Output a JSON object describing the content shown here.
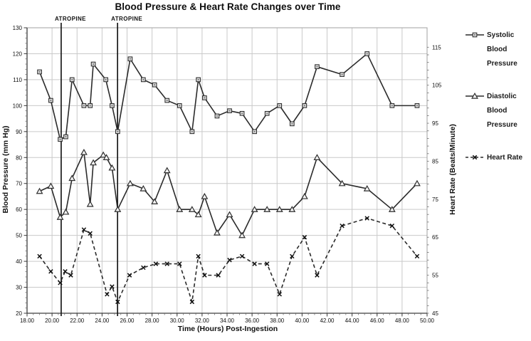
{
  "chart_data": {
    "type": "line",
    "title": "Blood Pressure & Heart Rate Changes over Time",
    "xlabel": "Time (Hours) Post-Ingestion",
    "ylabel_left": "Blood Pressure (mm Hg)",
    "ylabel_right": "Heart Rate (Beats/Minute)",
    "grid": true,
    "legend_position": "right",
    "x_axis": {
      "min": 18,
      "max": 50,
      "major_tick": 2,
      "minor_tick": 0.5,
      "tick_labels": [
        "18.00",
        "20.00",
        "22.00",
        "24.00",
        "26.00",
        "28.00",
        "30.00",
        "32.00",
        "34.00",
        "36.00",
        "38.00",
        "40.00",
        "42.00",
        "44.00",
        "46.00",
        "48.00",
        "50.00"
      ]
    },
    "y_left_axis": {
      "min": 20,
      "max": 130,
      "major_tick": 10,
      "minor_tick": 2,
      "tick_labels": [
        130,
        120,
        110,
        100,
        90,
        80,
        70,
        60,
        50,
        40,
        30,
        20
      ]
    },
    "y_right_axis": {
      "tick_labels": [
        115,
        105,
        95,
        85,
        75,
        65,
        55,
        45
      ],
      "minor_tick": 2,
      "bp_equiv_at_hr45": 20,
      "bp_units_per_hr_unit": 1.4643
    },
    "annotations": [
      {
        "type": "vline",
        "x": 20.73,
        "label": "ATROPINE"
      },
      {
        "type": "vline",
        "x": 25.24,
        "label": "ATROPINE"
      }
    ],
    "series": [
      {
        "name": "Systolic Blood Pressure",
        "legend_lines": [
          "Systolic",
          "Blood",
          "Pressure"
        ],
        "axis": "left",
        "line": "solid",
        "marker": "square",
        "x": [
          19.0,
          19.9,
          20.65,
          21.1,
          21.6,
          22.55,
          23.05,
          23.3,
          24.3,
          24.8,
          25.25,
          26.25,
          27.3,
          28.2,
          29.2,
          30.2,
          31.2,
          31.7,
          32.2,
          33.2,
          34.2,
          35.2,
          36.2,
          37.2,
          38.2,
          39.2,
          40.2,
          41.2,
          43.2,
          45.2,
          47.2,
          49.2
        ],
        "y": [
          113,
          102,
          87,
          88,
          110,
          100,
          100,
          116,
          110,
          100,
          90,
          118,
          110,
          108,
          102,
          100,
          90,
          110,
          103,
          96,
          98,
          97,
          90,
          97,
          100,
          93,
          100,
          115,
          112,
          120,
          100,
          100
        ]
      },
      {
        "name": "Diastolic Blood Pressure",
        "legend_lines": [
          "Diastolic",
          "Blood",
          "Pressure"
        ],
        "axis": "left",
        "line": "solid",
        "marker": "triangle",
        "x": [
          19.0,
          19.9,
          20.65,
          21.1,
          21.6,
          22.55,
          23.05,
          23.3,
          24.1,
          24.35,
          24.8,
          25.25,
          26.25,
          27.3,
          28.2,
          29.2,
          30.2,
          31.2,
          31.7,
          32.2,
          33.2,
          34.2,
          35.2,
          36.2,
          37.2,
          38.2,
          39.2,
          40.2,
          41.2,
          43.2,
          45.2,
          47.2,
          49.2
        ],
        "y": [
          67,
          69,
          57,
          59,
          72,
          82,
          62,
          78,
          81,
          80,
          76,
          60,
          70,
          68,
          63,
          75,
          60,
          60,
          58,
          65,
          51,
          58,
          50,
          60,
          60,
          60,
          60,
          65,
          80,
          70,
          68,
          60,
          70
        ]
      },
      {
        "name": "Heart Rate",
        "legend_lines": [
          "Heart Rate"
        ],
        "axis": "right",
        "line": "dashed",
        "marker": "x",
        "x": [
          19.0,
          19.9,
          20.65,
          21.05,
          21.5,
          22.55,
          23.05,
          24.4,
          24.8,
          25.25,
          26.2,
          27.3,
          28.3,
          29.2,
          30.2,
          31.2,
          31.7,
          32.2,
          33.3,
          34.2,
          35.2,
          36.2,
          37.2,
          38.2,
          39.2,
          40.2,
          41.2,
          43.2,
          45.2,
          47.2,
          49.2
        ],
        "y": [
          60,
          56,
          53,
          56,
          55,
          67,
          66,
          50,
          52,
          48,
          55,
          57,
          58,
          58,
          58,
          48,
          60,
          55,
          55,
          59,
          60,
          58,
          58,
          50,
          60,
          65,
          55,
          68,
          70,
          68,
          60
        ]
      }
    ],
    "colors": {
      "series": "#2b2b2b",
      "grid": "#c9c9c9",
      "border": "#a0a0a0",
      "axis": "#3d3d3d",
      "text": "#111111",
      "annotation_line": "#1a1a1a"
    }
  }
}
